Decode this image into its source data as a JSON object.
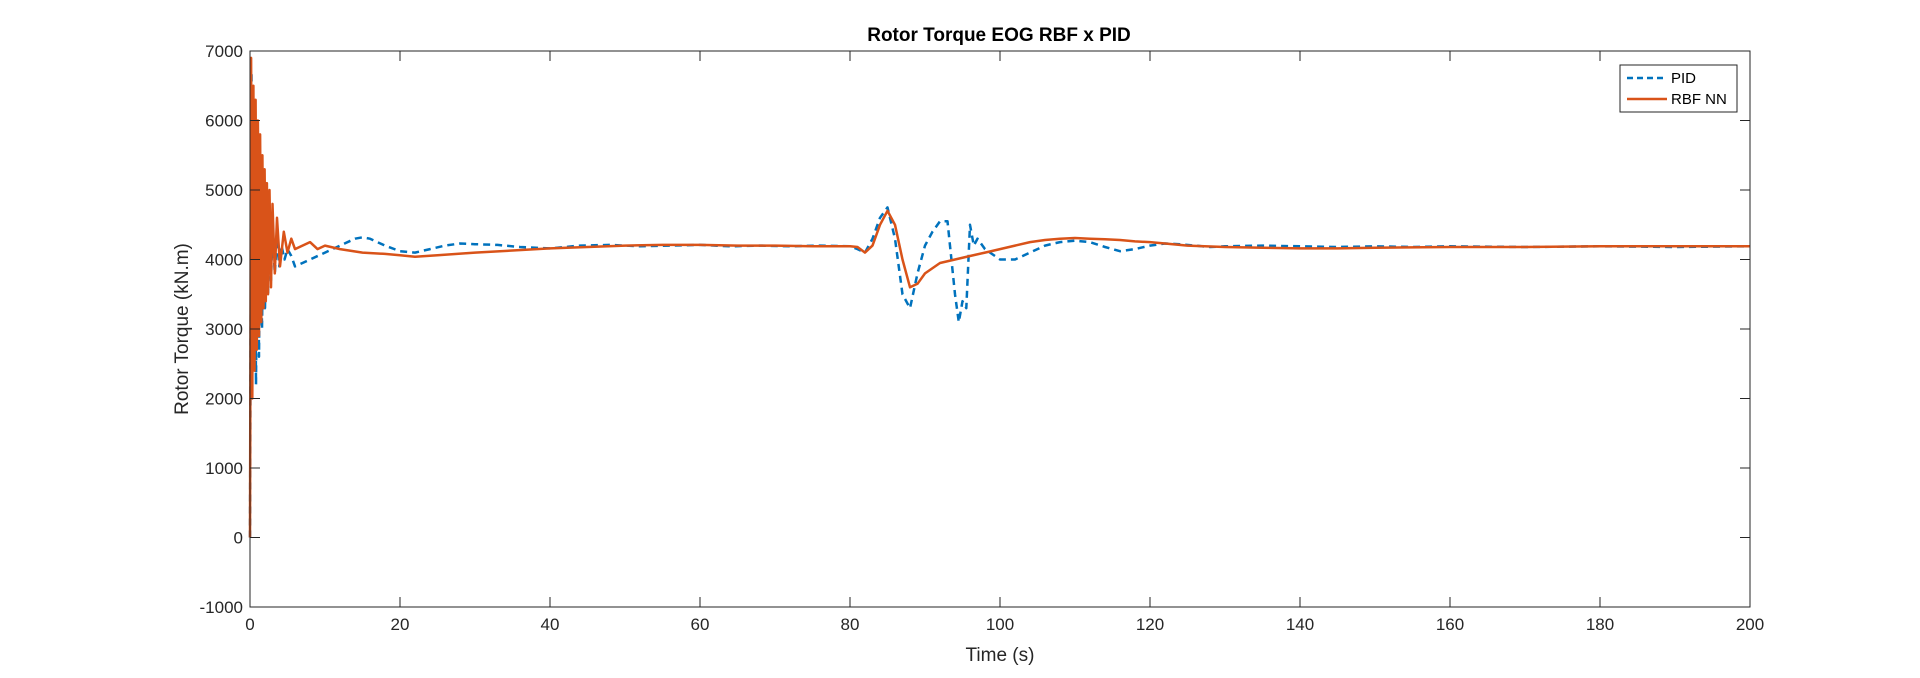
{
  "chart_data": {
    "type": "line",
    "title": "Rotor Torque EOG RBF x PID",
    "xlabel": "Time (s)",
    "ylabel": "Rotor Torque (kN.m)",
    "xlim": [
      0,
      200
    ],
    "ylim": [
      -1000,
      7000
    ],
    "xticks": [
      0,
      20,
      40,
      60,
      80,
      100,
      120,
      140,
      160,
      180,
      200
    ],
    "yticks": [
      -1000,
      0,
      1000,
      2000,
      3000,
      4000,
      5000,
      6000,
      7000
    ],
    "grid": false,
    "legend_position": "top-right",
    "series": [
      {
        "name": "PID",
        "color": "#0072BD",
        "style": "dashed",
        "x": [
          0,
          0.2,
          0.4,
          0.6,
          0.8,
          1.0,
          1.2,
          1.4,
          1.6,
          1.8,
          2.0,
          2.2,
          2.4,
          2.6,
          2.8,
          3.0,
          3.3,
          3.6,
          3.9,
          4.2,
          4.6,
          5.0,
          5.5,
          6,
          7,
          8,
          10,
          12,
          14,
          15,
          16,
          18,
          20,
          22,
          24,
          26,
          28,
          30,
          33,
          36,
          40,
          44,
          48,
          52,
          56,
          60,
          64,
          68,
          72,
          76,
          80,
          81,
          82,
          83,
          84,
          85,
          86,
          87,
          88,
          89,
          90,
          91,
          92,
          93,
          94,
          94.5,
          95,
          95.5,
          96,
          96.5,
          97,
          98,
          100,
          102,
          104,
          106,
          108,
          110,
          112,
          114,
          116,
          118,
          120,
          122,
          124,
          126,
          128,
          130,
          135,
          140,
          145,
          150,
          155,
          160,
          170,
          180,
          190,
          200
        ],
        "y": [
          0,
          6700,
          3000,
          5600,
          2200,
          5200,
          2600,
          5000,
          3000,
          4800,
          3300,
          4600,
          3500,
          4500,
          3700,
          4400,
          3800,
          4300,
          3900,
          4200,
          4000,
          4150,
          4050,
          3900,
          3950,
          4000,
          4100,
          4200,
          4300,
          4320,
          4300,
          4200,
          4120,
          4100,
          4150,
          4200,
          4230,
          4220,
          4210,
          4180,
          4160,
          4200,
          4210,
          4190,
          4200,
          4210,
          4190,
          4200,
          4190,
          4200,
          4190,
          4150,
          4100,
          4300,
          4600,
          4750,
          4300,
          3500,
          3300,
          3800,
          4200,
          4400,
          4550,
          4550,
          3500,
          3100,
          3400,
          3300,
          4500,
          4200,
          4300,
          4150,
          4000,
          4000,
          4100,
          4200,
          4250,
          4270,
          4250,
          4180,
          4120,
          4150,
          4200,
          4230,
          4220,
          4200,
          4180,
          4190,
          4200,
          4190,
          4180,
          4190,
          4180,
          4190,
          4180,
          4190,
          4180,
          4190
        ]
      },
      {
        "name": "RBF NN",
        "color": "#D95319",
        "style": "solid",
        "x": [
          0,
          0.15,
          0.3,
          0.45,
          0.6,
          0.75,
          0.9,
          1.05,
          1.2,
          1.35,
          1.5,
          1.65,
          1.8,
          1.95,
          2.1,
          2.25,
          2.4,
          2.6,
          2.8,
          3.0,
          3.3,
          3.6,
          4.0,
          4.5,
          5.0,
          5.5,
          6,
          7,
          8,
          9,
          10,
          12,
          15,
          18,
          20,
          22,
          25,
          30,
          35,
          40,
          45,
          50,
          55,
          60,
          65,
          70,
          75,
          80,
          81,
          82,
          83,
          84,
          85,
          86,
          87,
          88,
          89,
          90,
          92,
          94,
          96,
          98,
          100,
          102,
          104,
          106,
          108,
          110,
          112,
          114,
          116,
          118,
          120,
          122,
          125,
          130,
          135,
          140,
          145,
          150,
          160,
          170,
          180,
          190,
          200
        ],
        "y": [
          0,
          6900,
          2000,
          6500,
          2400,
          6300,
          2700,
          6000,
          2900,
          5800,
          3100,
          5500,
          3300,
          5300,
          3400,
          5100,
          3500,
          5000,
          3600,
          4800,
          3800,
          4600,
          3900,
          4400,
          4100,
          4300,
          4150,
          4200,
          4250,
          4150,
          4200,
          4150,
          4100,
          4080,
          4060,
          4040,
          4060,
          4100,
          4130,
          4160,
          4180,
          4200,
          4210,
          4210,
          4200,
          4200,
          4190,
          4190,
          4180,
          4100,
          4200,
          4500,
          4700,
          4500,
          4000,
          3600,
          3650,
          3800,
          3950,
          4000,
          4050,
          4100,
          4150,
          4200,
          4250,
          4280,
          4300,
          4310,
          4300,
          4290,
          4280,
          4260,
          4250,
          4230,
          4200,
          4180,
          4170,
          4160,
          4160,
          4170,
          4180,
          4180,
          4190,
          4190,
          4190
        ]
      }
    ]
  }
}
